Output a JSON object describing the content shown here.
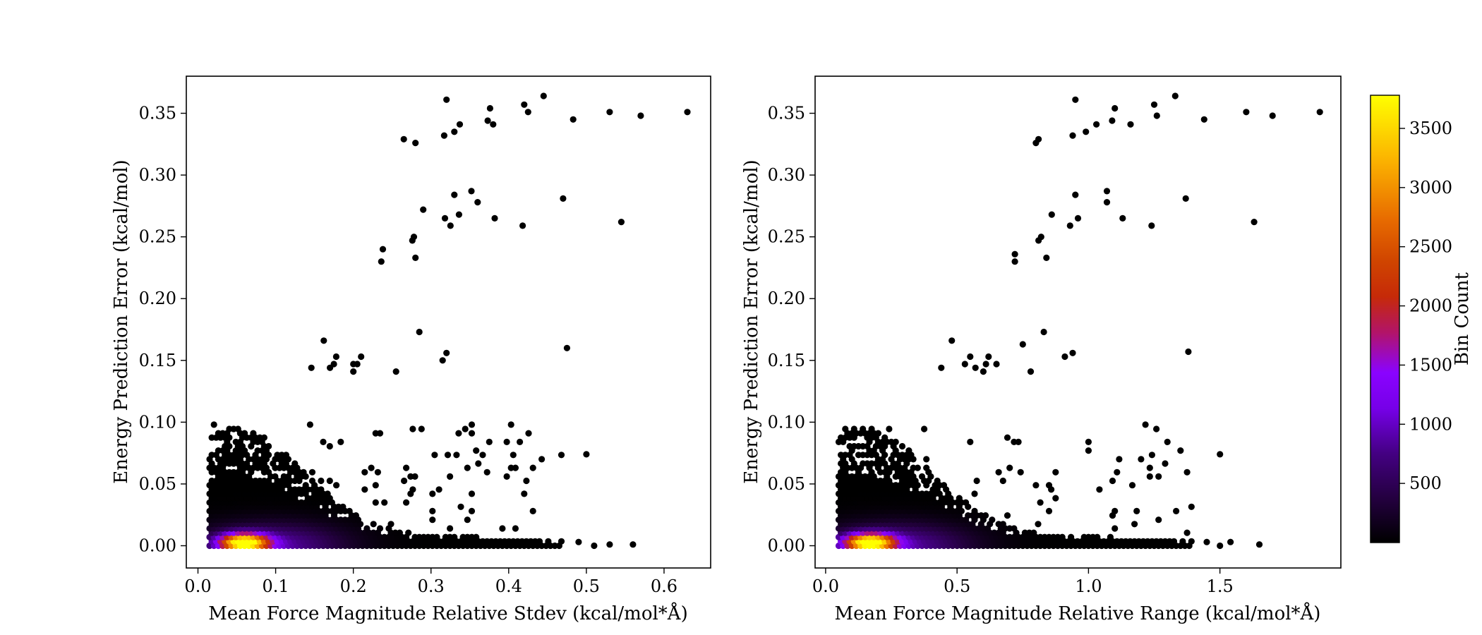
{
  "chart_data": [
    {
      "type": "hexbin",
      "xlabel": "Mean Force Magnitude Relative Stdev (kcal/mol*Å)",
      "ylabel": "Energy Prediction Error (kcal/mol)",
      "xlim": [
        -0.015,
        0.66
      ],
      "ylim": [
        -0.018,
        0.38
      ],
      "xticks": [
        0.0,
        0.1,
        0.2,
        0.3,
        0.4,
        0.5,
        0.6
      ],
      "yticks": [
        0.0,
        0.05,
        0.1,
        0.15,
        0.2,
        0.25,
        0.3,
        0.35
      ],
      "xtick_labels": [
        "0.0",
        "0.1",
        "0.2",
        "0.3",
        "0.4",
        "0.5",
        "0.6"
      ],
      "ytick_labels": [
        "0.00",
        "0.05",
        "0.10",
        "0.15",
        "0.20",
        "0.25",
        "0.30",
        "0.35"
      ],
      "density": {
        "peak": [
          0.06,
          0.003
        ],
        "peak_count": 3700,
        "spread_x": 0.03,
        "dense_x_range": [
          0.015,
          0.47
        ],
        "dense_y_max": 0.1
      },
      "outliers": [
        [
          0.32,
          0.361
        ],
        [
          0.445,
          0.364
        ],
        [
          0.42,
          0.357
        ],
        [
          0.376,
          0.354
        ],
        [
          0.425,
          0.351
        ],
        [
          0.53,
          0.351
        ],
        [
          0.63,
          0.351
        ],
        [
          0.57,
          0.348
        ],
        [
          0.483,
          0.345
        ],
        [
          0.373,
          0.344
        ],
        [
          0.38,
          0.341
        ],
        [
          0.337,
          0.341
        ],
        [
          0.33,
          0.335
        ],
        [
          0.317,
          0.332
        ],
        [
          0.265,
          0.329
        ],
        [
          0.28,
          0.326
        ],
        [
          0.352,
          0.287
        ],
        [
          0.33,
          0.284
        ],
        [
          0.47,
          0.281
        ],
        [
          0.36,
          0.278
        ],
        [
          0.29,
          0.272
        ],
        [
          0.336,
          0.268
        ],
        [
          0.318,
          0.265
        ],
        [
          0.382,
          0.265
        ],
        [
          0.325,
          0.259
        ],
        [
          0.418,
          0.259
        ],
        [
          0.545,
          0.262
        ],
        [
          0.278,
          0.25
        ],
        [
          0.276,
          0.247
        ],
        [
          0.238,
          0.24
        ],
        [
          0.236,
          0.23
        ],
        [
          0.28,
          0.233
        ],
        [
          0.285,
          0.173
        ],
        [
          0.162,
          0.166
        ],
        [
          0.475,
          0.16
        ],
        [
          0.32,
          0.156
        ],
        [
          0.178,
          0.153
        ],
        [
          0.315,
          0.15
        ],
        [
          0.21,
          0.153
        ],
        [
          0.2,
          0.147
        ],
        [
          0.175,
          0.147
        ],
        [
          0.205,
          0.147
        ],
        [
          0.146,
          0.144
        ],
        [
          0.17,
          0.144
        ],
        [
          0.2,
          0.141
        ],
        [
          0.255,
          0.141
        ],
        [
          0.5,
          0.074
        ],
        [
          0.49,
          0.003
        ],
        [
          0.53,
          0.001
        ],
        [
          0.56,
          0.001
        ],
        [
          0.51,
          0.0
        ]
      ]
    },
    {
      "type": "hexbin",
      "xlabel": "Mean Force Magnitude Relative Range (kcal/mol*Å)",
      "ylabel": "Energy Prediction Error (kcal/mol)",
      "xlim": [
        -0.04,
        1.96
      ],
      "ylim": [
        -0.018,
        0.38
      ],
      "xticks": [
        0.0,
        0.5,
        1.0,
        1.5
      ],
      "yticks": [
        0.0,
        0.05,
        0.1,
        0.15,
        0.2,
        0.25,
        0.3,
        0.35
      ],
      "xtick_labels": [
        "0.0",
        "0.5",
        "1.0",
        "1.5"
      ],
      "ytick_labels": [
        "0.00",
        "0.05",
        "0.10",
        "0.15",
        "0.20",
        "0.25",
        "0.30",
        "0.35"
      ],
      "density": {
        "peak": [
          0.17,
          0.003
        ],
        "peak_count": 3700,
        "spread_x": 0.09,
        "dense_x_range": [
          0.05,
          1.4
        ],
        "dense_y_max": 0.1
      },
      "outliers": [
        [
          0.95,
          0.361
        ],
        [
          1.33,
          0.364
        ],
        [
          1.25,
          0.357
        ],
        [
          1.1,
          0.354
        ],
        [
          1.26,
          0.348
        ],
        [
          1.6,
          0.351
        ],
        [
          1.88,
          0.351
        ],
        [
          1.7,
          0.348
        ],
        [
          1.44,
          0.345
        ],
        [
          1.09,
          0.344
        ],
        [
          1.16,
          0.341
        ],
        [
          1.03,
          0.341
        ],
        [
          0.99,
          0.335
        ],
        [
          0.94,
          0.332
        ],
        [
          0.81,
          0.329
        ],
        [
          0.8,
          0.326
        ],
        [
          1.07,
          0.287
        ],
        [
          0.95,
          0.284
        ],
        [
          1.37,
          0.281
        ],
        [
          1.07,
          0.278
        ],
        [
          0.86,
          0.268
        ],
        [
          0.96,
          0.265
        ],
        [
          1.13,
          0.265
        ],
        [
          0.93,
          0.259
        ],
        [
          1.24,
          0.259
        ],
        [
          1.63,
          0.262
        ],
        [
          0.82,
          0.25
        ],
        [
          0.81,
          0.247
        ],
        [
          0.72,
          0.236
        ],
        [
          0.72,
          0.23
        ],
        [
          0.84,
          0.233
        ],
        [
          0.83,
          0.173
        ],
        [
          0.48,
          0.166
        ],
        [
          0.75,
          0.163
        ],
        [
          1.38,
          0.157
        ],
        [
          0.94,
          0.156
        ],
        [
          0.55,
          0.153
        ],
        [
          0.91,
          0.153
        ],
        [
          0.62,
          0.153
        ],
        [
          0.61,
          0.147
        ],
        [
          0.53,
          0.147
        ],
        [
          0.65,
          0.147
        ],
        [
          0.44,
          0.144
        ],
        [
          0.57,
          0.144
        ],
        [
          0.6,
          0.141
        ],
        [
          0.78,
          0.141
        ],
        [
          1.5,
          0.074
        ],
        [
          1.45,
          0.003
        ],
        [
          1.54,
          0.003
        ],
        [
          1.65,
          0.001
        ],
        [
          1.5,
          0.0
        ]
      ]
    }
  ],
  "colorbar": {
    "label": "Bin Count",
    "range": [
      0,
      3780
    ],
    "ticks": [
      500,
      1000,
      1500,
      2000,
      2500,
      3000,
      3500
    ],
    "tick_labels": [
      "500",
      "1000",
      "1500",
      "2000",
      "2500",
      "3000",
      "3500"
    ],
    "colormap": "gnuplot",
    "colors": [
      "#000000",
      "#240040",
      "#440083",
      "#7600e8",
      "#8a03ff",
      "#b21468",
      "#c62a08",
      "#d04500",
      "#e76a00",
      "#fbb000",
      "#ffff00"
    ]
  }
}
